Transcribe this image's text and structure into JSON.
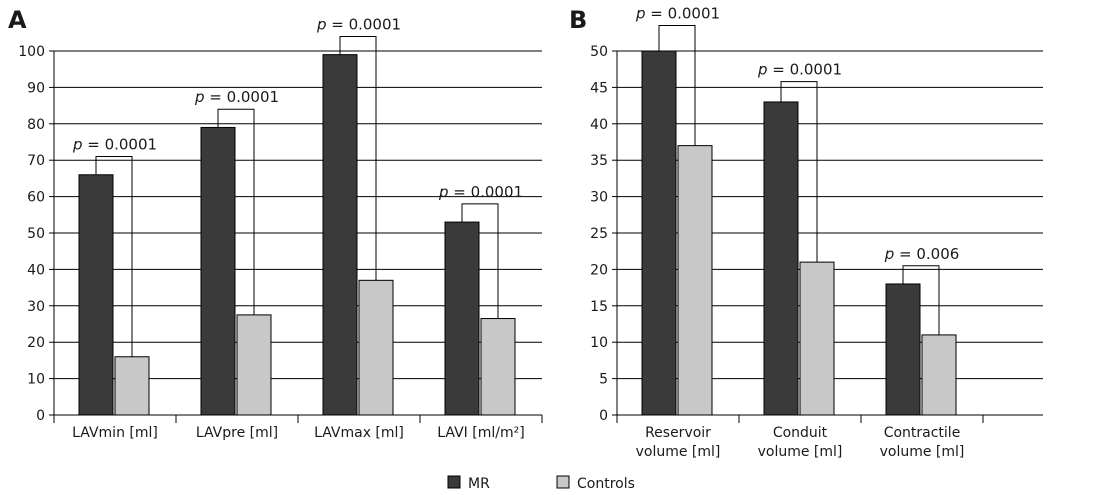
{
  "colors": {
    "mr": "#3a3a3a",
    "controls": "#c8c8c8",
    "axis": "#000000",
    "grid": "#000000"
  },
  "legend": [
    {
      "name": "MR",
      "key": "mr"
    },
    {
      "name": "Controls",
      "key": "controls"
    }
  ],
  "chart_data": [
    {
      "panel": "A",
      "type": "bar",
      "categories": [
        [
          "LAVmin [ml]"
        ],
        [
          "LAVpre [ml]"
        ],
        [
          "LAVmax [ml]"
        ],
        [
          "LAVI [ml/m²]"
        ]
      ],
      "series": [
        {
          "name": "MR",
          "values": [
            66,
            79,
            99,
            53
          ]
        },
        {
          "name": "Controls",
          "values": [
            16,
            27.5,
            37,
            26.5
          ]
        }
      ],
      "ylim": [
        0,
        100
      ],
      "yticks": [
        0,
        10,
        20,
        30,
        40,
        50,
        60,
        70,
        80,
        90,
        100
      ],
      "grid": true,
      "annotations": [
        {
          "category": 0,
          "text": "p = 0.0001",
          "bracket_top": 71
        },
        {
          "category": 1,
          "text": "p = 0.0001",
          "bracket_top": 84
        },
        {
          "category": 2,
          "text": "p = 0.0001",
          "bracket_top": 104
        },
        {
          "category": 3,
          "text": "p = 0.0001",
          "bracket_top": 58
        }
      ]
    },
    {
      "panel": "B",
      "type": "bar",
      "categories": [
        [
          "Reservoir",
          "volume [ml]"
        ],
        [
          "Conduit",
          "volume [ml]"
        ],
        [
          "Contractile",
          "volume [ml]"
        ]
      ],
      "series": [
        {
          "name": "MR",
          "values": [
            50,
            43,
            18
          ]
        },
        {
          "name": "Controls",
          "values": [
            37,
            21,
            11
          ]
        }
      ],
      "ylim": [
        0,
        50
      ],
      "yticks": [
        0,
        5,
        10,
        15,
        20,
        25,
        30,
        35,
        40,
        45,
        50
      ],
      "grid": true,
      "annotations": [
        {
          "category": 0,
          "text": "p = 0.0001",
          "bracket_top": 53.5
        },
        {
          "category": 1,
          "text": "p = 0.0001",
          "bracket_top": 45.8
        },
        {
          "category": 2,
          "text": "p = 0.006",
          "bracket_top": 20.5
        }
      ]
    }
  ]
}
